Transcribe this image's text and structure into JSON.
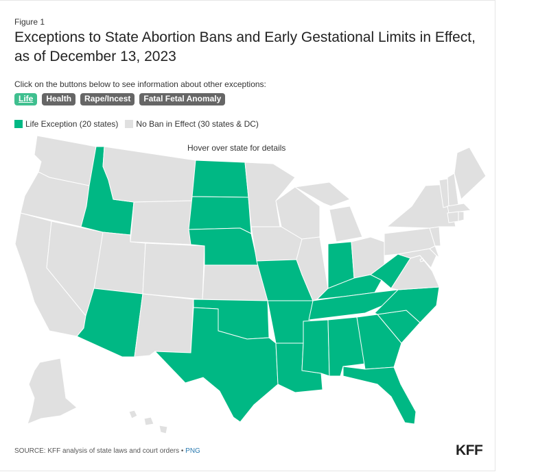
{
  "figure_label": "Figure 1",
  "title_line1": "Exceptions to State Abortion Bans and Early Gestational Limits in Effect,",
  "title_line2": "as of December 13, 2023",
  "instructions": "Click on the buttons below to see information about other exceptions:",
  "buttons": [
    {
      "label": "Life",
      "active": true
    },
    {
      "label": "Health",
      "active": false
    },
    {
      "label": "Rape/Incest",
      "active": false
    },
    {
      "label": "Fatal Fetal Anomaly",
      "active": false
    }
  ],
  "legend": [
    {
      "label": "Life Exception (20 states)",
      "color": "#00b884"
    },
    {
      "label": "No Ban in Effect (30 states & DC)",
      "color": "#e0e0e0"
    }
  ],
  "hover_hint": "Hover over state for details",
  "source_text": "SOURCE: KFF analysis of state laws and court orders •",
  "source_link": "PNG",
  "logo": "KFF",
  "colors": {
    "life": "#00b884",
    "none": "#e0e0e0",
    "border": "#ffffff"
  },
  "map_data": {
    "life_exception_states": [
      "ID",
      "ND",
      "SD",
      "NE",
      "AZ",
      "TX",
      "OK",
      "MO",
      "AR",
      "LA",
      "MS",
      "AL",
      "TN",
      "KY",
      "IN",
      "WV",
      "GA",
      "SC",
      "NC",
      "FL"
    ],
    "no_ban_states": [
      "WA",
      "OR",
      "CA",
      "NV",
      "MT",
      "WY",
      "UT",
      "CO",
      "NM",
      "MN",
      "IA",
      "KS",
      "WI",
      "IL",
      "MI",
      "OH",
      "PA",
      "NY",
      "VT",
      "NH",
      "ME",
      "MA",
      "RI",
      "CT",
      "NJ",
      "DE",
      "MD",
      "VA",
      "DC",
      "AK",
      "HI"
    ]
  }
}
